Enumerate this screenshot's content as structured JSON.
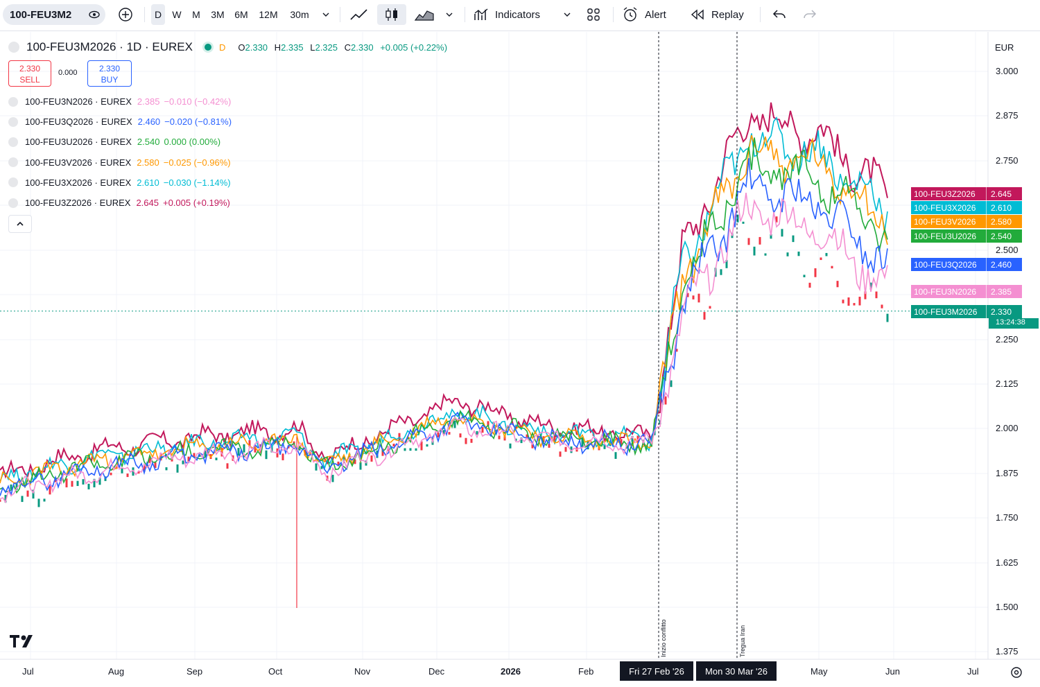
{
  "toolbar": {
    "symbol": "100-FEU3M2",
    "timeframes": [
      "D",
      "W",
      "M",
      "3M",
      "6M",
      "12M",
      "30m"
    ],
    "indicators_label": "Indicators",
    "alert_label": "Alert",
    "replay_label": "Replay"
  },
  "main_legend": {
    "title": "100-FEU3M2026 · 1D · EUREX",
    "market_flag": "D",
    "o_label": "O",
    "o": "2.330",
    "h_label": "H",
    "h": "2.335",
    "l_label": "L",
    "l": "2.325",
    "c_label": "C",
    "c": "2.330",
    "change": "+0.005 (+0.22%)",
    "sell_price": "2.330",
    "sell_label": "SELL",
    "spread": "0.000",
    "buy_price": "2.330",
    "buy_label": "BUY"
  },
  "compare_legend": [
    {
      "name": "100-FEU3N2026 · EUREX",
      "value": "2.385",
      "change": "−0.010 (−0.42%)",
      "color": "#f48fd1"
    },
    {
      "name": "100-FEU3Q2026 · EUREX",
      "value": "2.460",
      "change": "−0.020 (−0.81%)",
      "color": "#2962ff"
    },
    {
      "name": "100-FEU3U2026 · EUREX",
      "value": "2.540",
      "change": "0.000 (0.00%)",
      "color": "#22ab3b"
    },
    {
      "name": "100-FEU3V2026 · EUREX",
      "value": "2.580",
      "change": "−0.025 (−0.96%)",
      "color": "#ff9800"
    },
    {
      "name": "100-FEU3X2026 · EUREX",
      "value": "2.610",
      "change": "−0.030 (−1.14%)",
      "color": "#00bcd4"
    },
    {
      "name": "100-FEU3Z2026 · EUREX",
      "value": "2.645",
      "change": "+0.005 (+0.19%)",
      "color": "#c2185b"
    }
  ],
  "price_axis": {
    "currency": "EUR",
    "ticks": [
      "3.000",
      "2.875",
      "2.750",
      "2.500",
      "2.250",
      "2.125",
      "2.000",
      "1.875",
      "1.750",
      "1.625",
      "1.500",
      "1.375"
    ]
  },
  "time_axis": {
    "ticks": [
      "Jul",
      "Aug",
      "Sep",
      "Oct",
      "Nov",
      "Dec",
      "2026",
      "Feb",
      "May",
      "Jun",
      "Jul"
    ],
    "highlight_dates": [
      "Fri 27 Feb '26",
      "Mon 30 Mar '26"
    ]
  },
  "price_tags": [
    {
      "name": "100-FEU3Z2026",
      "value": "2.645",
      "color": "#c2185b"
    },
    {
      "name": "100-FEU3X2026",
      "value": "2.610",
      "color": "#00bcd4"
    },
    {
      "name": "100-FEU3V2026",
      "value": "2.580",
      "color": "#ff9800"
    },
    {
      "name": "100-FEU3U2026",
      "value": "2.540",
      "color": "#22ab3b"
    },
    {
      "name": "100-FEU3Q2026",
      "value": "2.460",
      "color": "#2962ff"
    },
    {
      "name": "100-FEU3N2026",
      "value": "2.385",
      "color": "#f48fd1"
    },
    {
      "name": "100-FEU3M2026",
      "value": "2.330",
      "countdown": "13:24:38",
      "color": "#089981"
    }
  ],
  "annotations": [
    "Inizio conflitto",
    "Tregua Iran"
  ],
  "chart_data": {
    "type": "line",
    "x": [
      "Jul",
      "Aug",
      "Sep",
      "Oct",
      "Nov",
      "Dec",
      "2026",
      "Feb",
      "27 Feb",
      "30 Mar",
      "May",
      "Jun"
    ],
    "series": [
      {
        "name": "100-FEU3Z2026",
        "color": "#c2185b",
        "values": [
          1.87,
          1.94,
          1.98,
          2.0,
          1.92,
          2.08,
          2.01,
          1.98,
          2.5,
          2.88,
          2.83,
          2.645
        ]
      },
      {
        "name": "100-FEU3X2026",
        "color": "#00bcd4",
        "values": [
          1.86,
          1.92,
          1.96,
          1.98,
          1.91,
          2.05,
          1.99,
          1.97,
          2.46,
          2.82,
          2.77,
          2.61
        ]
      },
      {
        "name": "100-FEU3V2026",
        "color": "#ff9800",
        "values": [
          1.85,
          1.91,
          1.95,
          1.97,
          1.9,
          2.04,
          1.98,
          1.96,
          2.43,
          2.78,
          2.74,
          2.58
        ]
      },
      {
        "name": "100-FEU3U2026",
        "color": "#22ab3b",
        "values": [
          1.84,
          1.9,
          1.94,
          1.96,
          1.89,
          2.03,
          1.98,
          1.96,
          2.4,
          2.74,
          2.7,
          2.54
        ]
      },
      {
        "name": "100-FEU3Q2026",
        "color": "#2962ff",
        "values": [
          1.83,
          1.89,
          1.93,
          1.95,
          1.89,
          2.02,
          1.97,
          1.96,
          2.36,
          2.68,
          2.63,
          2.46
        ]
      },
      {
        "name": "100-FEU3N2026",
        "color": "#f48fd1",
        "values": [
          1.82,
          1.88,
          1.93,
          1.95,
          1.88,
          2.01,
          1.97,
          1.96,
          2.32,
          2.62,
          2.56,
          2.385
        ]
      },
      {
        "name": "100-FEU3M2026",
        "color": "#089981",
        "values": [
          1.8,
          1.86,
          1.92,
          1.94,
          1.88,
          2.0,
          1.96,
          1.96,
          2.3,
          2.56,
          2.45,
          2.33
        ]
      }
    ],
    "ylim": [
      1.35,
      3.05
    ]
  }
}
